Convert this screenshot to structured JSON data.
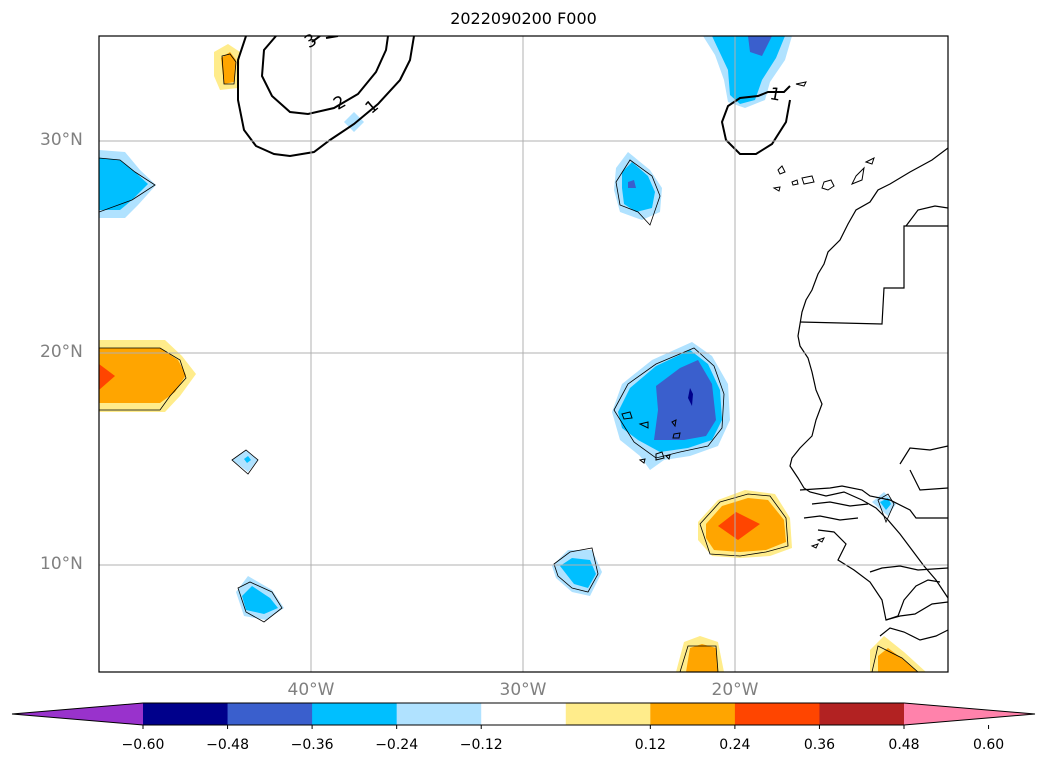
{
  "title": "2022090200 F000",
  "map": {
    "lat_labels": [
      {
        "text": "30°N",
        "value": 30
      },
      {
        "text": "20°N",
        "value": 20
      },
      {
        "text": "10°N",
        "value": 10
      }
    ],
    "lon_labels": [
      {
        "text": "40°W",
        "value": -40
      },
      {
        "text": "30°W",
        "value": -30
      },
      {
        "text": "20°W",
        "value": -20
      }
    ],
    "contour_labels": [
      "3",
      "2",
      "1",
      "1"
    ],
    "gridlines": true
  },
  "colorbar": {
    "tick_labels": [
      "−0.60",
      "−0.48",
      "−0.36",
      "−0.24",
      "−0.12",
      "0.12",
      "0.24",
      "0.36",
      "0.48",
      "0.60"
    ],
    "colors": [
      "#9932cc",
      "#00008b",
      "#3a5fcd",
      "#00bfff",
      "#b0e2ff",
      "#ffffff",
      "#ffec8b",
      "#ffa500",
      "#ff4500",
      "#b22222",
      "#ff82ab"
    ],
    "extend": "both"
  }
}
